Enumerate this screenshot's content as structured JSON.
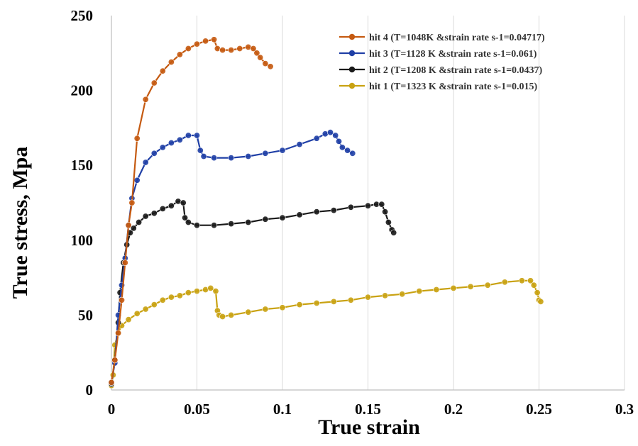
{
  "chart_data": {
    "type": "line",
    "title": "",
    "xlabel": "True strain",
    "ylabel": "True stress, Mpa",
    "xlim": [
      0,
      0.3
    ],
    "ylim": [
      0,
      250
    ],
    "x_ticks": [
      0,
      0.05,
      0.1,
      0.15,
      0.2,
      0.25,
      0.3
    ],
    "x_tick_labels": [
      "0",
      "0.05",
      "0.1",
      "0.15",
      "0.2",
      "0.25",
      "0.3"
    ],
    "y_ticks": [
      0,
      50,
      100,
      150,
      200,
      250
    ],
    "y_tick_labels": [
      "0",
      "50",
      "100",
      "150",
      "200",
      "250"
    ],
    "grid": "vertical",
    "legend_position": "top-right",
    "legend_order": [
      3,
      2,
      1,
      0
    ],
    "series": [
      {
        "name": "hit 1 (T=1323 K &strain rate s-1=0.015)",
        "color": "#C9A212",
        "points": [
          [
            0.0,
            3
          ],
          [
            0.001,
            10
          ],
          [
            0.002,
            30
          ],
          [
            0.004,
            38
          ],
          [
            0.006,
            43
          ],
          [
            0.01,
            47
          ],
          [
            0.015,
            51
          ],
          [
            0.02,
            54
          ],
          [
            0.025,
            57
          ],
          [
            0.03,
            60
          ],
          [
            0.035,
            62
          ],
          [
            0.04,
            63
          ],
          [
            0.045,
            65
          ],
          [
            0.05,
            66
          ],
          [
            0.055,
            67
          ],
          [
            0.058,
            68
          ],
          [
            0.061,
            66
          ],
          [
            0.062,
            53
          ],
          [
            0.063,
            50
          ],
          [
            0.065,
            49
          ],
          [
            0.07,
            50
          ],
          [
            0.08,
            52
          ],
          [
            0.09,
            54
          ],
          [
            0.1,
            55
          ],
          [
            0.11,
            57
          ],
          [
            0.12,
            58
          ],
          [
            0.13,
            59
          ],
          [
            0.14,
            60
          ],
          [
            0.15,
            62
          ],
          [
            0.16,
            63
          ],
          [
            0.17,
            64
          ],
          [
            0.18,
            66
          ],
          [
            0.19,
            67
          ],
          [
            0.2,
            68
          ],
          [
            0.21,
            69
          ],
          [
            0.22,
            70
          ],
          [
            0.23,
            72
          ],
          [
            0.24,
            73
          ],
          [
            0.245,
            73
          ],
          [
            0.247,
            70
          ],
          [
            0.249,
            65
          ],
          [
            0.25,
            60
          ],
          [
            0.251,
            59
          ]
        ]
      },
      {
        "name": "hit 2 (T=1208 K &strain rate s-1=0.0437)",
        "color": "#1a1a1a",
        "points": [
          [
            0.0,
            4
          ],
          [
            0.002,
            20
          ],
          [
            0.004,
            45
          ],
          [
            0.005,
            65
          ],
          [
            0.007,
            85
          ],
          [
            0.009,
            97
          ],
          [
            0.011,
            105
          ],
          [
            0.013,
            108
          ],
          [
            0.016,
            112
          ],
          [
            0.02,
            116
          ],
          [
            0.025,
            118
          ],
          [
            0.03,
            121
          ],
          [
            0.035,
            123
          ],
          [
            0.039,
            126
          ],
          [
            0.042,
            125
          ],
          [
            0.043,
            115
          ],
          [
            0.045,
            112
          ],
          [
            0.05,
            110
          ],
          [
            0.06,
            110
          ],
          [
            0.07,
            111
          ],
          [
            0.08,
            112
          ],
          [
            0.09,
            114
          ],
          [
            0.1,
            115
          ],
          [
            0.11,
            117
          ],
          [
            0.12,
            119
          ],
          [
            0.13,
            120
          ],
          [
            0.14,
            122
          ],
          [
            0.15,
            123
          ],
          [
            0.155,
            124
          ],
          [
            0.158,
            124
          ],
          [
            0.16,
            119
          ],
          [
            0.162,
            112
          ],
          [
            0.164,
            107
          ],
          [
            0.165,
            105
          ]
        ]
      },
      {
        "name": "hit 3 (T=1128 K &strain rate s-1=0.061)",
        "color": "#1F3FA6",
        "points": [
          [
            0.0,
            5
          ],
          [
            0.002,
            18
          ],
          [
            0.004,
            50
          ],
          [
            0.006,
            70
          ],
          [
            0.008,
            88
          ],
          [
            0.01,
            110
          ],
          [
            0.012,
            128
          ],
          [
            0.015,
            140
          ],
          [
            0.02,
            152
          ],
          [
            0.025,
            158
          ],
          [
            0.03,
            162
          ],
          [
            0.035,
            165
          ],
          [
            0.04,
            167
          ],
          [
            0.045,
            170
          ],
          [
            0.05,
            170
          ],
          [
            0.052,
            160
          ],
          [
            0.054,
            156
          ],
          [
            0.06,
            155
          ],
          [
            0.07,
            155
          ],
          [
            0.08,
            156
          ],
          [
            0.09,
            158
          ],
          [
            0.1,
            160
          ],
          [
            0.11,
            164
          ],
          [
            0.12,
            168
          ],
          [
            0.125,
            171
          ],
          [
            0.128,
            172
          ],
          [
            0.131,
            170
          ],
          [
            0.133,
            166
          ],
          [
            0.135,
            162
          ],
          [
            0.138,
            160
          ],
          [
            0.141,
            158
          ]
        ]
      },
      {
        "name": "hit 4  (T=1048K &strain rate s-1=0.04717)",
        "color": "#C55A11",
        "points": [
          [
            0.0,
            5
          ],
          [
            0.002,
            20
          ],
          [
            0.004,
            38
          ],
          [
            0.006,
            60
          ],
          [
            0.008,
            85
          ],
          [
            0.01,
            110
          ],
          [
            0.012,
            125
          ],
          [
            0.015,
            168
          ],
          [
            0.02,
            194
          ],
          [
            0.025,
            205
          ],
          [
            0.03,
            213
          ],
          [
            0.035,
            219
          ],
          [
            0.04,
            224
          ],
          [
            0.045,
            228
          ],
          [
            0.05,
            231
          ],
          [
            0.055,
            233
          ],
          [
            0.06,
            234
          ],
          [
            0.062,
            228
          ],
          [
            0.065,
            227
          ],
          [
            0.07,
            227
          ],
          [
            0.075,
            228
          ],
          [
            0.08,
            229
          ],
          [
            0.083,
            228
          ],
          [
            0.085,
            225
          ],
          [
            0.087,
            222
          ],
          [
            0.09,
            218
          ],
          [
            0.093,
            216
          ]
        ]
      }
    ]
  }
}
